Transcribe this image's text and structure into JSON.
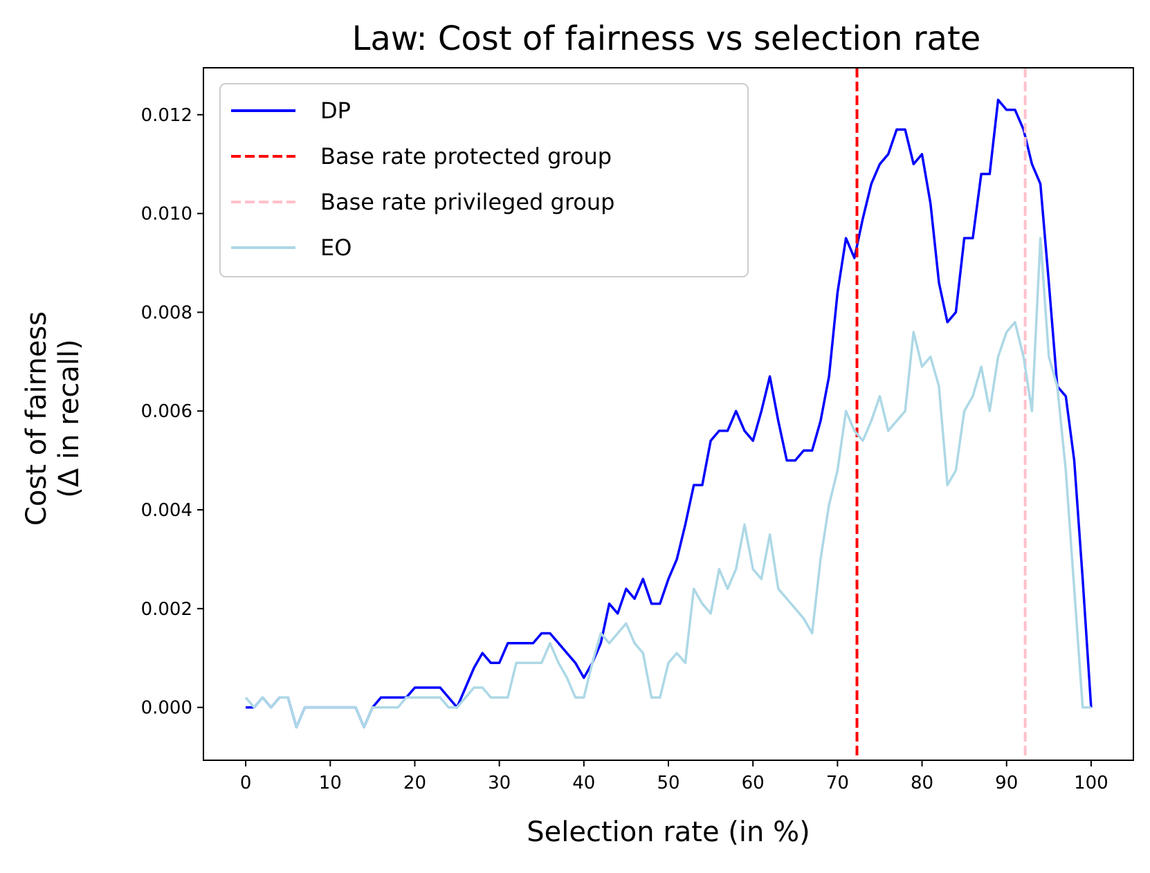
{
  "chart_data": {
    "type": "line",
    "title": "Law: Cost of fairness vs selection rate",
    "xlabel": "Selection rate (in %)",
    "ylabel_line1": "Cost of fairness",
    "ylabel_line2": "(Δ in recall)",
    "xlim": [
      -5,
      105
    ],
    "ylim": [
      -0.00107,
      0.01295
    ],
    "xticks": [
      0,
      10,
      20,
      30,
      40,
      50,
      60,
      70,
      80,
      90,
      100
    ],
    "xtick_labels": [
      "0",
      "10",
      "20",
      "30",
      "40",
      "50",
      "60",
      "70",
      "80",
      "90",
      "100"
    ],
    "yticks": [
      0.0,
      0.002,
      0.004,
      0.006,
      0.008,
      0.01,
      0.012
    ],
    "ytick_labels": [
      "0.000",
      "0.002",
      "0.004",
      "0.006",
      "0.008",
      "0.010",
      "0.012"
    ],
    "grid": false,
    "legend_position": "upper-left",
    "series": [
      {
        "name": "DP",
        "color": "#0000ff",
        "style": "solid",
        "points": [
          [
            0,
            0.0
          ],
          [
            1,
            0.0
          ],
          [
            2,
            0.0002
          ],
          [
            3,
            0.0
          ],
          [
            4,
            0.0002
          ],
          [
            5,
            0.0002
          ],
          [
            6,
            -0.0004
          ],
          [
            7,
            0.0
          ],
          [
            8,
            0.0
          ],
          [
            9,
            0.0
          ],
          [
            10,
            0.0
          ],
          [
            11,
            0.0
          ],
          [
            12,
            0.0
          ],
          [
            13,
            0.0
          ],
          [
            14,
            -0.0004
          ],
          [
            15,
            0.0
          ],
          [
            16,
            0.0002
          ],
          [
            17,
            0.0002
          ],
          [
            18,
            0.0002
          ],
          [
            19,
            0.0002
          ],
          [
            20,
            0.0004
          ],
          [
            21,
            0.0004
          ],
          [
            22,
            0.0004
          ],
          [
            23,
            0.0004
          ],
          [
            24,
            0.0002
          ],
          [
            25,
            0.0
          ],
          [
            26,
            0.0004
          ],
          [
            27,
            0.0008
          ],
          [
            28,
            0.0011
          ],
          [
            29,
            0.0009
          ],
          [
            30,
            0.0009
          ],
          [
            31,
            0.0013
          ],
          [
            32,
            0.0013
          ],
          [
            33,
            0.0013
          ],
          [
            34,
            0.0013
          ],
          [
            35,
            0.0015
          ],
          [
            36,
            0.0015
          ],
          [
            37,
            0.0013
          ],
          [
            38,
            0.0011
          ],
          [
            39,
            0.0009
          ],
          [
            40,
            0.0006
          ],
          [
            41,
            0.0009
          ],
          [
            42,
            0.0013
          ],
          [
            43,
            0.0021
          ],
          [
            44,
            0.0019
          ],
          [
            45,
            0.0024
          ],
          [
            46,
            0.0022
          ],
          [
            47,
            0.0026
          ],
          [
            48,
            0.0021
          ],
          [
            49,
            0.0021
          ],
          [
            50,
            0.0026
          ],
          [
            51,
            0.003
          ],
          [
            52,
            0.0037
          ],
          [
            53,
            0.0045
          ],
          [
            54,
            0.0045
          ],
          [
            55,
            0.0054
          ],
          [
            56,
            0.0056
          ],
          [
            57,
            0.0056
          ],
          [
            58,
            0.006
          ],
          [
            59,
            0.0056
          ],
          [
            60,
            0.0054
          ],
          [
            61,
            0.006
          ],
          [
            62,
            0.0067
          ],
          [
            63,
            0.0058
          ],
          [
            64,
            0.005
          ],
          [
            65,
            0.005
          ],
          [
            66,
            0.0052
          ],
          [
            67,
            0.0052
          ],
          [
            68,
            0.0058
          ],
          [
            69,
            0.0067
          ],
          [
            70,
            0.0084
          ],
          [
            71,
            0.0095
          ],
          [
            72,
            0.0091
          ],
          [
            73,
            0.0099
          ],
          [
            74,
            0.0106
          ],
          [
            75,
            0.011
          ],
          [
            76,
            0.0112
          ],
          [
            77,
            0.0117
          ],
          [
            78,
            0.0117
          ],
          [
            79,
            0.011
          ],
          [
            80,
            0.0112
          ],
          [
            81,
            0.0102
          ],
          [
            82,
            0.0086
          ],
          [
            83,
            0.0078
          ],
          [
            84,
            0.008
          ],
          [
            85,
            0.0095
          ],
          [
            86,
            0.0095
          ],
          [
            87,
            0.0108
          ],
          [
            88,
            0.0108
          ],
          [
            89,
            0.0123
          ],
          [
            90,
            0.0121
          ],
          [
            91,
            0.0121
          ],
          [
            92,
            0.0117
          ],
          [
            93,
            0.011
          ],
          [
            94,
            0.0106
          ],
          [
            95,
            0.0086
          ],
          [
            96,
            0.0065
          ],
          [
            97,
            0.0063
          ],
          [
            98,
            0.005
          ],
          [
            99,
            0.0026
          ],
          [
            100,
            0.0
          ]
        ]
      },
      {
        "name": "Base rate protected group",
        "color": "#ff0000",
        "style": "dashed",
        "vline_x": 72.3
      },
      {
        "name": "Base rate privileged group",
        "color": "#ffc0cb",
        "style": "dashed",
        "vline_x": 92.2
      },
      {
        "name": "EO",
        "color": "#add8e6",
        "style": "solid",
        "points": [
          [
            0,
            0.0002
          ],
          [
            1,
            0.0
          ],
          [
            2,
            0.0002
          ],
          [
            3,
            0.0
          ],
          [
            4,
            0.0002
          ],
          [
            5,
            0.0002
          ],
          [
            6,
            -0.0004
          ],
          [
            7,
            0.0
          ],
          [
            8,
            0.0
          ],
          [
            9,
            0.0
          ],
          [
            10,
            0.0
          ],
          [
            11,
            0.0
          ],
          [
            12,
            0.0
          ],
          [
            13,
            0.0
          ],
          [
            14,
            -0.0004
          ],
          [
            15,
            0.0
          ],
          [
            16,
            0.0
          ],
          [
            17,
            0.0
          ],
          [
            18,
            0.0
          ],
          [
            19,
            0.0002
          ],
          [
            20,
            0.0002
          ],
          [
            21,
            0.0002
          ],
          [
            22,
            0.0002
          ],
          [
            23,
            0.0002
          ],
          [
            24,
            0.0
          ],
          [
            25,
            0.0
          ],
          [
            26,
            0.0002
          ],
          [
            27,
            0.0004
          ],
          [
            28,
            0.0004
          ],
          [
            29,
            0.0002
          ],
          [
            30,
            0.0002
          ],
          [
            31,
            0.0002
          ],
          [
            32,
            0.0009
          ],
          [
            33,
            0.0009
          ],
          [
            34,
            0.0009
          ],
          [
            35,
            0.0009
          ],
          [
            36,
            0.0013
          ],
          [
            37,
            0.0009
          ],
          [
            38,
            0.0006
          ],
          [
            39,
            0.0002
          ],
          [
            40,
            0.0002
          ],
          [
            41,
            0.0009
          ],
          [
            42,
            0.0015
          ],
          [
            43,
            0.0013
          ],
          [
            44,
            0.0015
          ],
          [
            45,
            0.0017
          ],
          [
            46,
            0.0013
          ],
          [
            47,
            0.0011
          ],
          [
            48,
            0.0002
          ],
          [
            49,
            0.0002
          ],
          [
            50,
            0.0009
          ],
          [
            51,
            0.0011
          ],
          [
            52,
            0.0009
          ],
          [
            53,
            0.0024
          ],
          [
            54,
            0.0021
          ],
          [
            55,
            0.0019
          ],
          [
            56,
            0.0028
          ],
          [
            57,
            0.0024
          ],
          [
            58,
            0.0028
          ],
          [
            59,
            0.0037
          ],
          [
            60,
            0.0028
          ],
          [
            61,
            0.0026
          ],
          [
            62,
            0.0035
          ],
          [
            63,
            0.0024
          ],
          [
            64,
            0.0022
          ],
          [
            65,
            0.002
          ],
          [
            66,
            0.0018
          ],
          [
            67,
            0.0015
          ],
          [
            68,
            0.003
          ],
          [
            69,
            0.0041
          ],
          [
            70,
            0.0048
          ],
          [
            71,
            0.006
          ],
          [
            72,
            0.0056
          ],
          [
            73,
            0.0054
          ],
          [
            74,
            0.0058
          ],
          [
            75,
            0.0063
          ],
          [
            76,
            0.0056
          ],
          [
            77,
            0.0058
          ],
          [
            78,
            0.006
          ],
          [
            79,
            0.0076
          ],
          [
            80,
            0.0069
          ],
          [
            81,
            0.0071
          ],
          [
            82,
            0.0065
          ],
          [
            83,
            0.0045
          ],
          [
            84,
            0.0048
          ],
          [
            85,
            0.006
          ],
          [
            86,
            0.0063
          ],
          [
            87,
            0.0069
          ],
          [
            88,
            0.006
          ],
          [
            89,
            0.0071
          ],
          [
            90,
            0.0076
          ],
          [
            91,
            0.0078
          ],
          [
            92,
            0.0071
          ],
          [
            93,
            0.006
          ],
          [
            94,
            0.0095
          ],
          [
            95,
            0.0071
          ],
          [
            96,
            0.0065
          ],
          [
            97,
            0.0048
          ],
          [
            98,
            0.0024
          ],
          [
            99,
            0.0
          ],
          [
            100,
            0.0
          ]
        ]
      }
    ]
  }
}
